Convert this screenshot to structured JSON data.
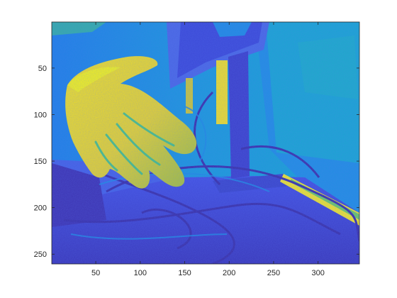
{
  "chart_data": {
    "type": "heatmap",
    "title": "",
    "xlabel": "",
    "ylabel": "",
    "colormap": "parula",
    "colorbar": false,
    "grid": false,
    "y_direction": "reverse",
    "xlim": [
      0.5,
      346.5
    ],
    "ylim": [
      0.5,
      260.5
    ],
    "x_ticks": [
      50,
      100,
      150,
      200,
      250,
      300
    ],
    "y_ticks": [
      50,
      100,
      150,
      200,
      250
    ],
    "x_tick_labels": [
      "50",
      "100",
      "150",
      "200",
      "250",
      "300"
    ],
    "y_tick_labels": [
      "50",
      "100",
      "150",
      "200",
      "250"
    ],
    "color_stops": [
      "#3e26a8",
      "#4453e4",
      "#1e8be0",
      "#12b2c4",
      "#3cc089",
      "#b8bd30",
      "#f9d624",
      "#fafa10"
    ],
    "scene": "thermal image of a hand reaching toward a monitor stand and cables on a desk"
  }
}
